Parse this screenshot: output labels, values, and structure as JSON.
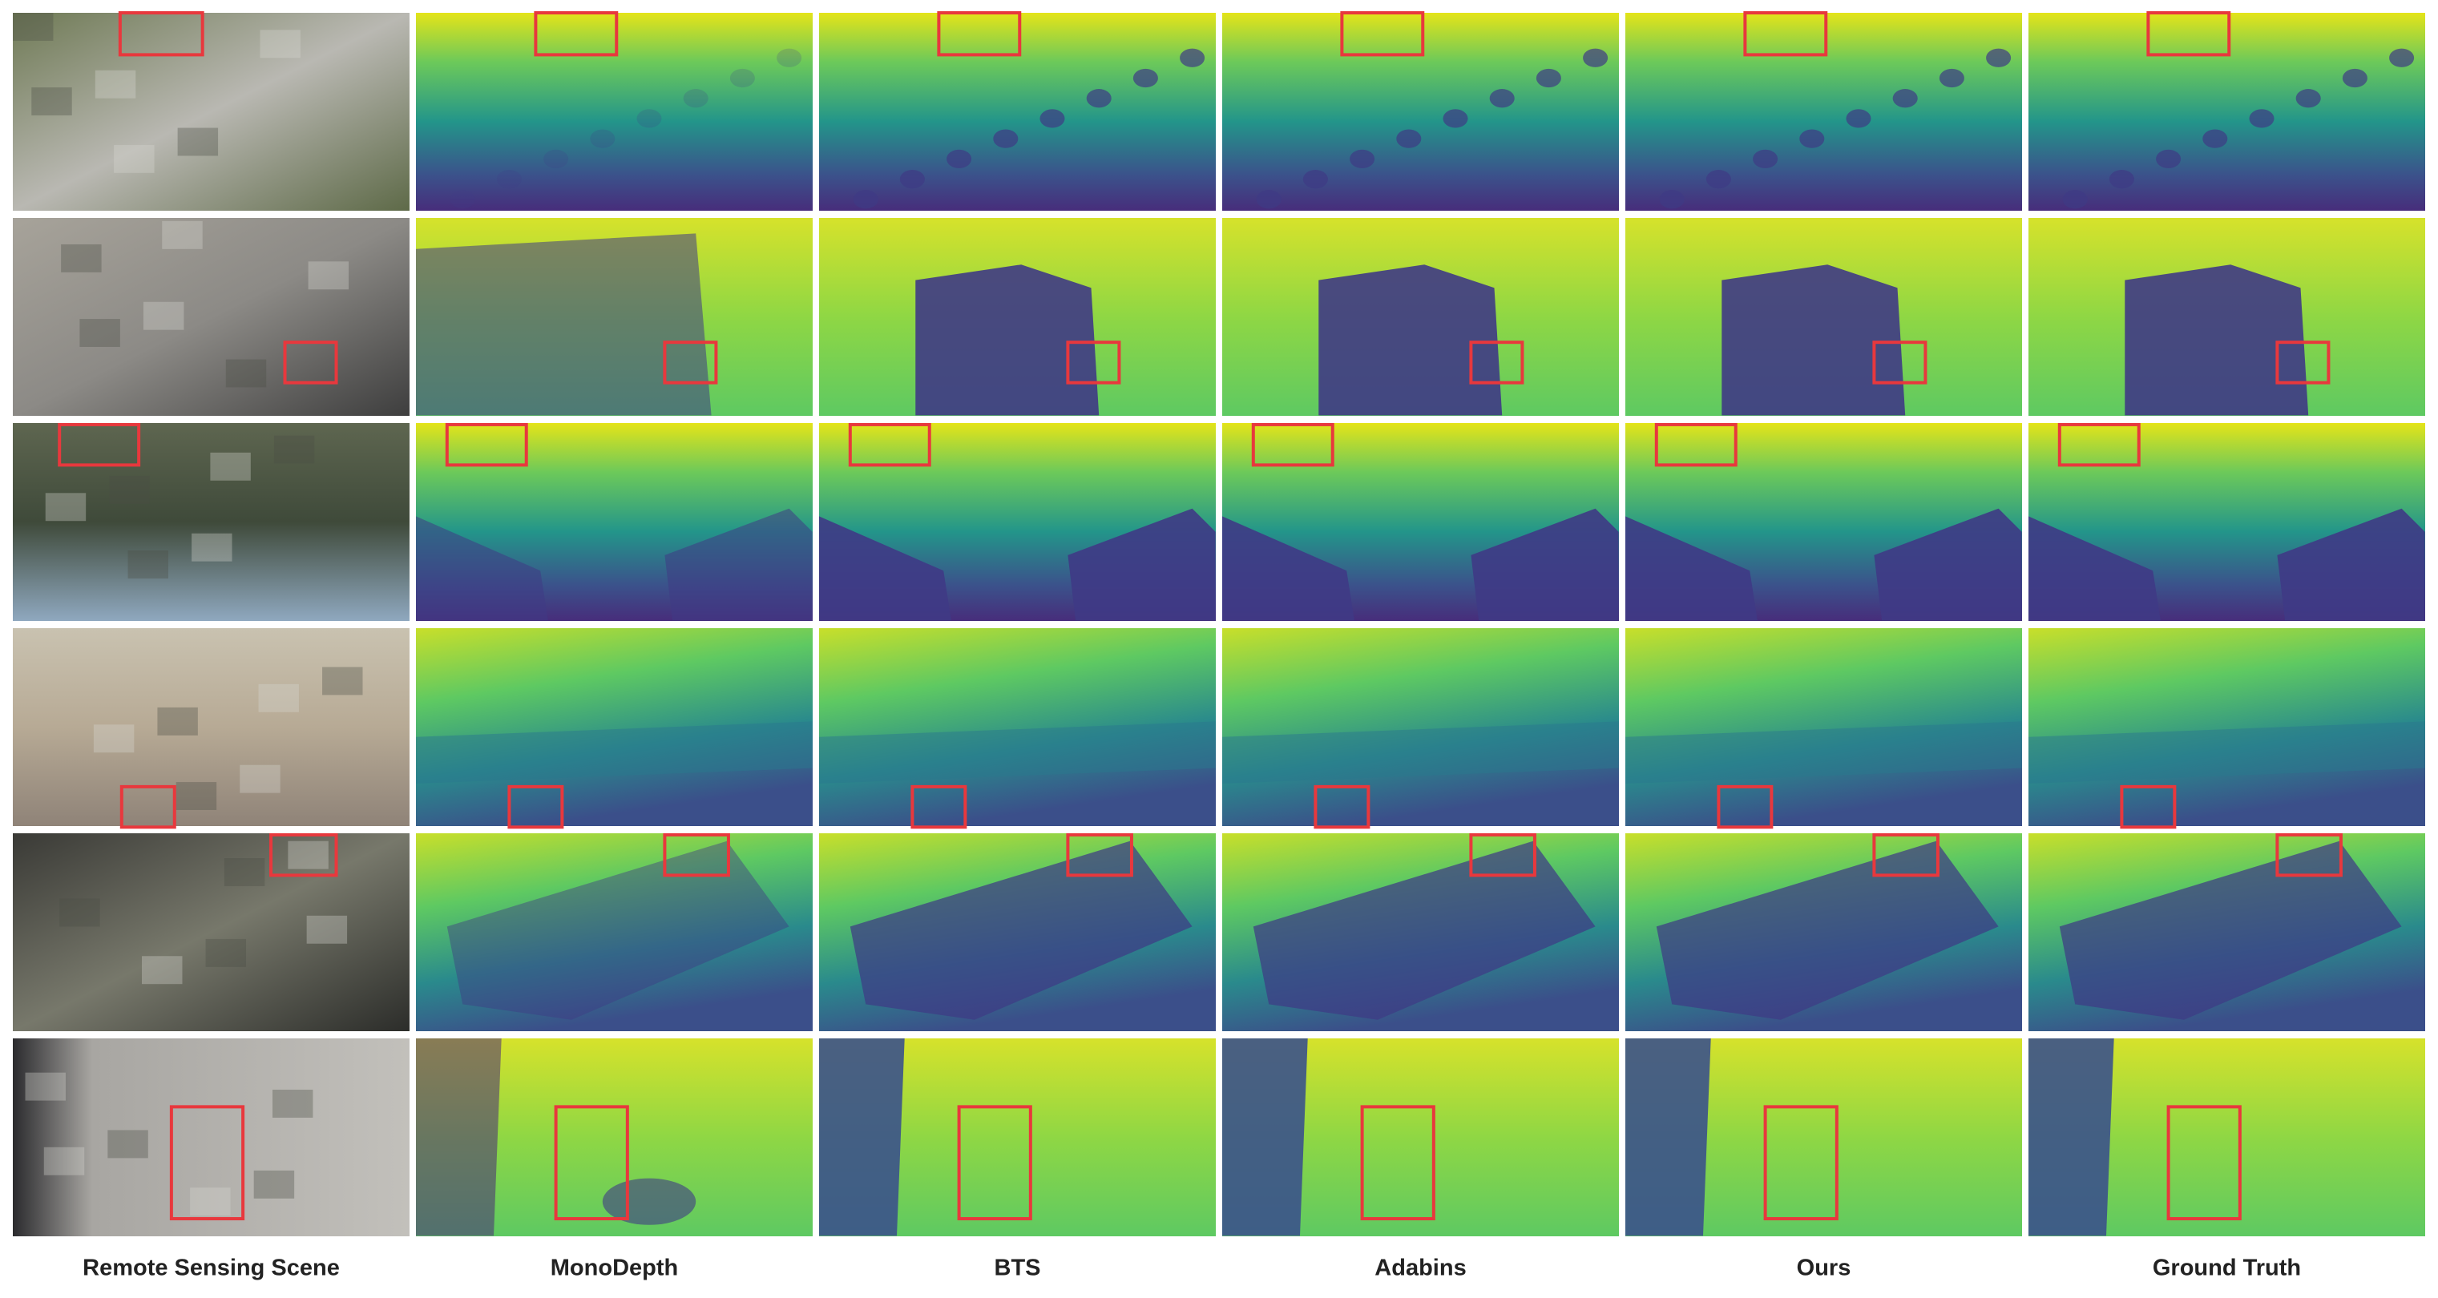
{
  "figure": {
    "column_labels": [
      "Remote Sensing Scene",
      "MonoDepth",
      "BTS",
      "Adabins",
      "Ours",
      "Ground Truth"
    ]
  }
}
